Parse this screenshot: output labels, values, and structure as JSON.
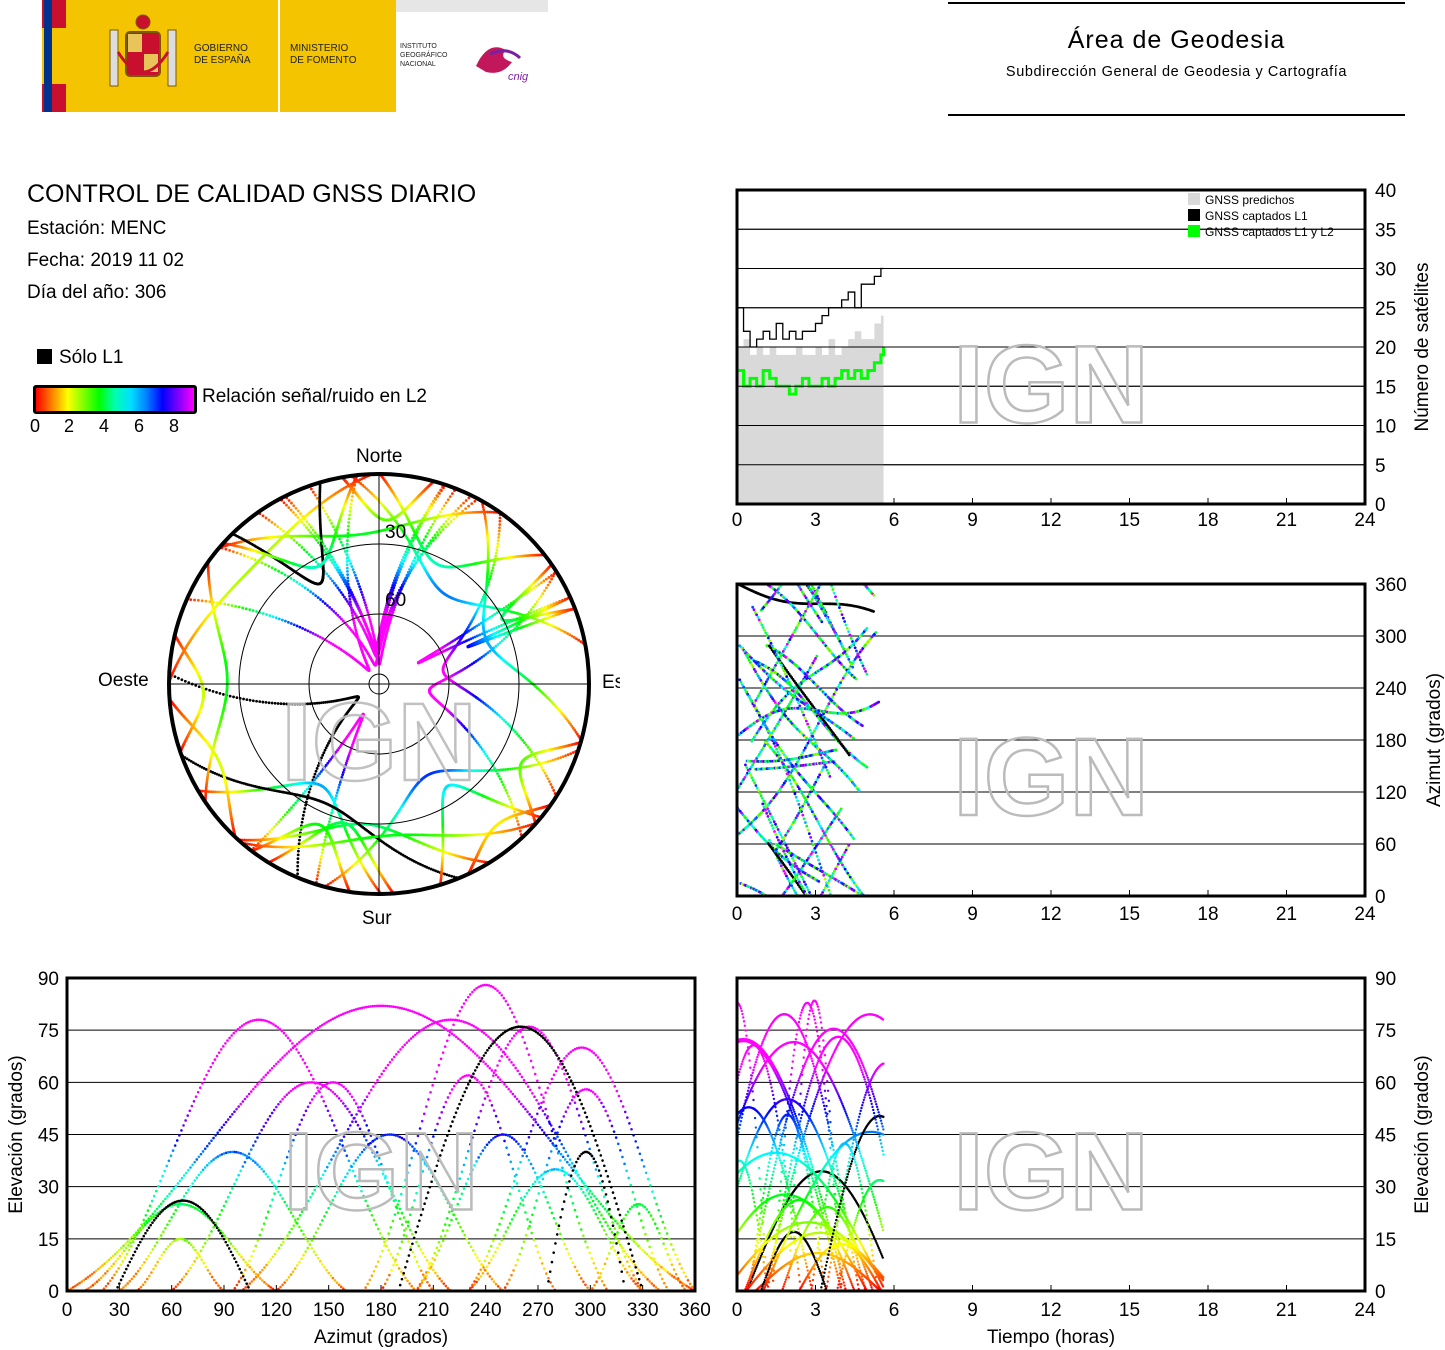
{
  "header": {
    "gobierno": "GOBIERNO\nDE ESPAÑA",
    "gobierno_line1": "GOBIERNO",
    "gobierno_line2": "DE ESPAÑA",
    "ministerio_line1": "MINISTERIO",
    "ministerio_line2": "DE FOMENTO",
    "ign_line1": "INSTITUTO",
    "ign_line2": "GEOGRÁFICO",
    "ign_line3": "NACIONAL",
    "cnig": "cnig",
    "area_title": "Área de Geodesia",
    "area_subtitle": "Subdirección General de Geodesia y Cartografía"
  },
  "info": {
    "title": "CONTROL DE CALIDAD GNSS DIARIO",
    "station": "Estación: MENC",
    "date": "Fecha: 2019 11 02",
    "doy": "Día del año: 306"
  },
  "legend": {
    "l1_only": "Sólo L1",
    "snr_label": "Relación señal/ruido en L2",
    "snr_ticks": [
      "0",
      "2",
      "4",
      "6",
      "8"
    ],
    "colors": {
      "l1_only": "#000000",
      "snr_low": "#ff0000",
      "snr_high": "#ff00ff"
    }
  },
  "watermark": "IGN",
  "skyplot": {
    "north": "Norte",
    "south": "Sur",
    "east": "Este",
    "west": "Oeste",
    "ring_labels": [
      "30",
      "60"
    ]
  },
  "chart_data": [
    {
      "type": "area",
      "ylabel": "Número de satélites",
      "x_range": [
        0,
        24
      ],
      "x_ticks": [
        "0",
        "3",
        "6",
        "9",
        "12",
        "15",
        "18",
        "21",
        "24"
      ],
      "ylim": [
        0,
        40
      ],
      "y_ticks": [
        "0",
        "5",
        "10",
        "15",
        "20",
        "25",
        "30",
        "35",
        "40"
      ],
      "legend": [
        "GNSS predichos",
        "GNSS captados L1",
        "GNSS captados L1 y L2"
      ],
      "legend_colors": [
        "#d9d9d9",
        "#000000",
        "#00ff00"
      ],
      "legend_position": "top-right",
      "grid": true,
      "x": [
        0,
        0.25,
        0.5,
        0.75,
        1,
        1.25,
        1.5,
        1.75,
        2,
        2.25,
        2.5,
        2.75,
        3,
        3.25,
        3.5,
        3.75,
        4,
        4.25,
        4.5,
        4.75,
        5,
        5.25,
        5.5,
        5.6
      ],
      "series": [
        {
          "name": "GNSS predichos",
          "values": [
            20,
            21,
            19,
            20,
            19,
            20,
            19,
            19,
            19,
            20,
            19,
            19,
            20,
            19,
            21,
            19,
            20,
            21,
            22,
            21,
            21,
            23,
            24,
            24
          ]
        },
        {
          "name": "GNSS captados L1",
          "values": [
            25,
            22,
            20,
            21,
            22,
            21,
            23,
            21,
            22,
            21,
            22,
            22,
            23,
            24,
            25,
            25,
            26,
            27,
            25,
            28,
            28,
            29,
            30,
            30
          ]
        },
        {
          "name": "GNSS captados L1 y L2",
          "values": [
            17,
            15,
            16,
            15,
            17,
            16,
            15,
            15,
            14,
            15,
            16,
            15,
            15,
            16,
            15,
            16,
            17,
            16,
            17,
            16,
            17,
            18,
            19,
            20
          ]
        }
      ]
    },
    {
      "type": "scatter",
      "ylabel": "Azimut (grados)",
      "x_range": [
        0,
        24
      ],
      "x_ticks": [
        "0",
        "3",
        "6",
        "9",
        "12",
        "15",
        "18",
        "21",
        "24"
      ],
      "ylim": [
        0,
        360
      ],
      "y_ticks": [
        "0",
        "60",
        "120",
        "180",
        "240",
        "300",
        "360"
      ],
      "grid": true
    },
    {
      "type": "scatter",
      "xlabel": "Azimut (grados)",
      "ylabel": "Elevación (grados)",
      "x_range": [
        0,
        360
      ],
      "x_ticks": [
        "0",
        "30",
        "60",
        "90",
        "120",
        "150",
        "180",
        "210",
        "240",
        "270",
        "300",
        "330",
        "360"
      ],
      "ylim": [
        0,
        90
      ],
      "y_ticks": [
        "0",
        "15",
        "30",
        "45",
        "60",
        "75",
        "90"
      ],
      "grid": true
    },
    {
      "type": "scatter",
      "xlabel": "Tiempo (horas)",
      "ylabel": "Elevación (grados)",
      "x_range": [
        0,
        24
      ],
      "x_ticks": [
        "0",
        "3",
        "6",
        "9",
        "12",
        "15",
        "18",
        "21",
        "24"
      ],
      "ylim": [
        0,
        90
      ],
      "y_ticks": [
        "0",
        "15",
        "30",
        "45",
        "60",
        "75",
        "90"
      ],
      "grid": true
    }
  ]
}
